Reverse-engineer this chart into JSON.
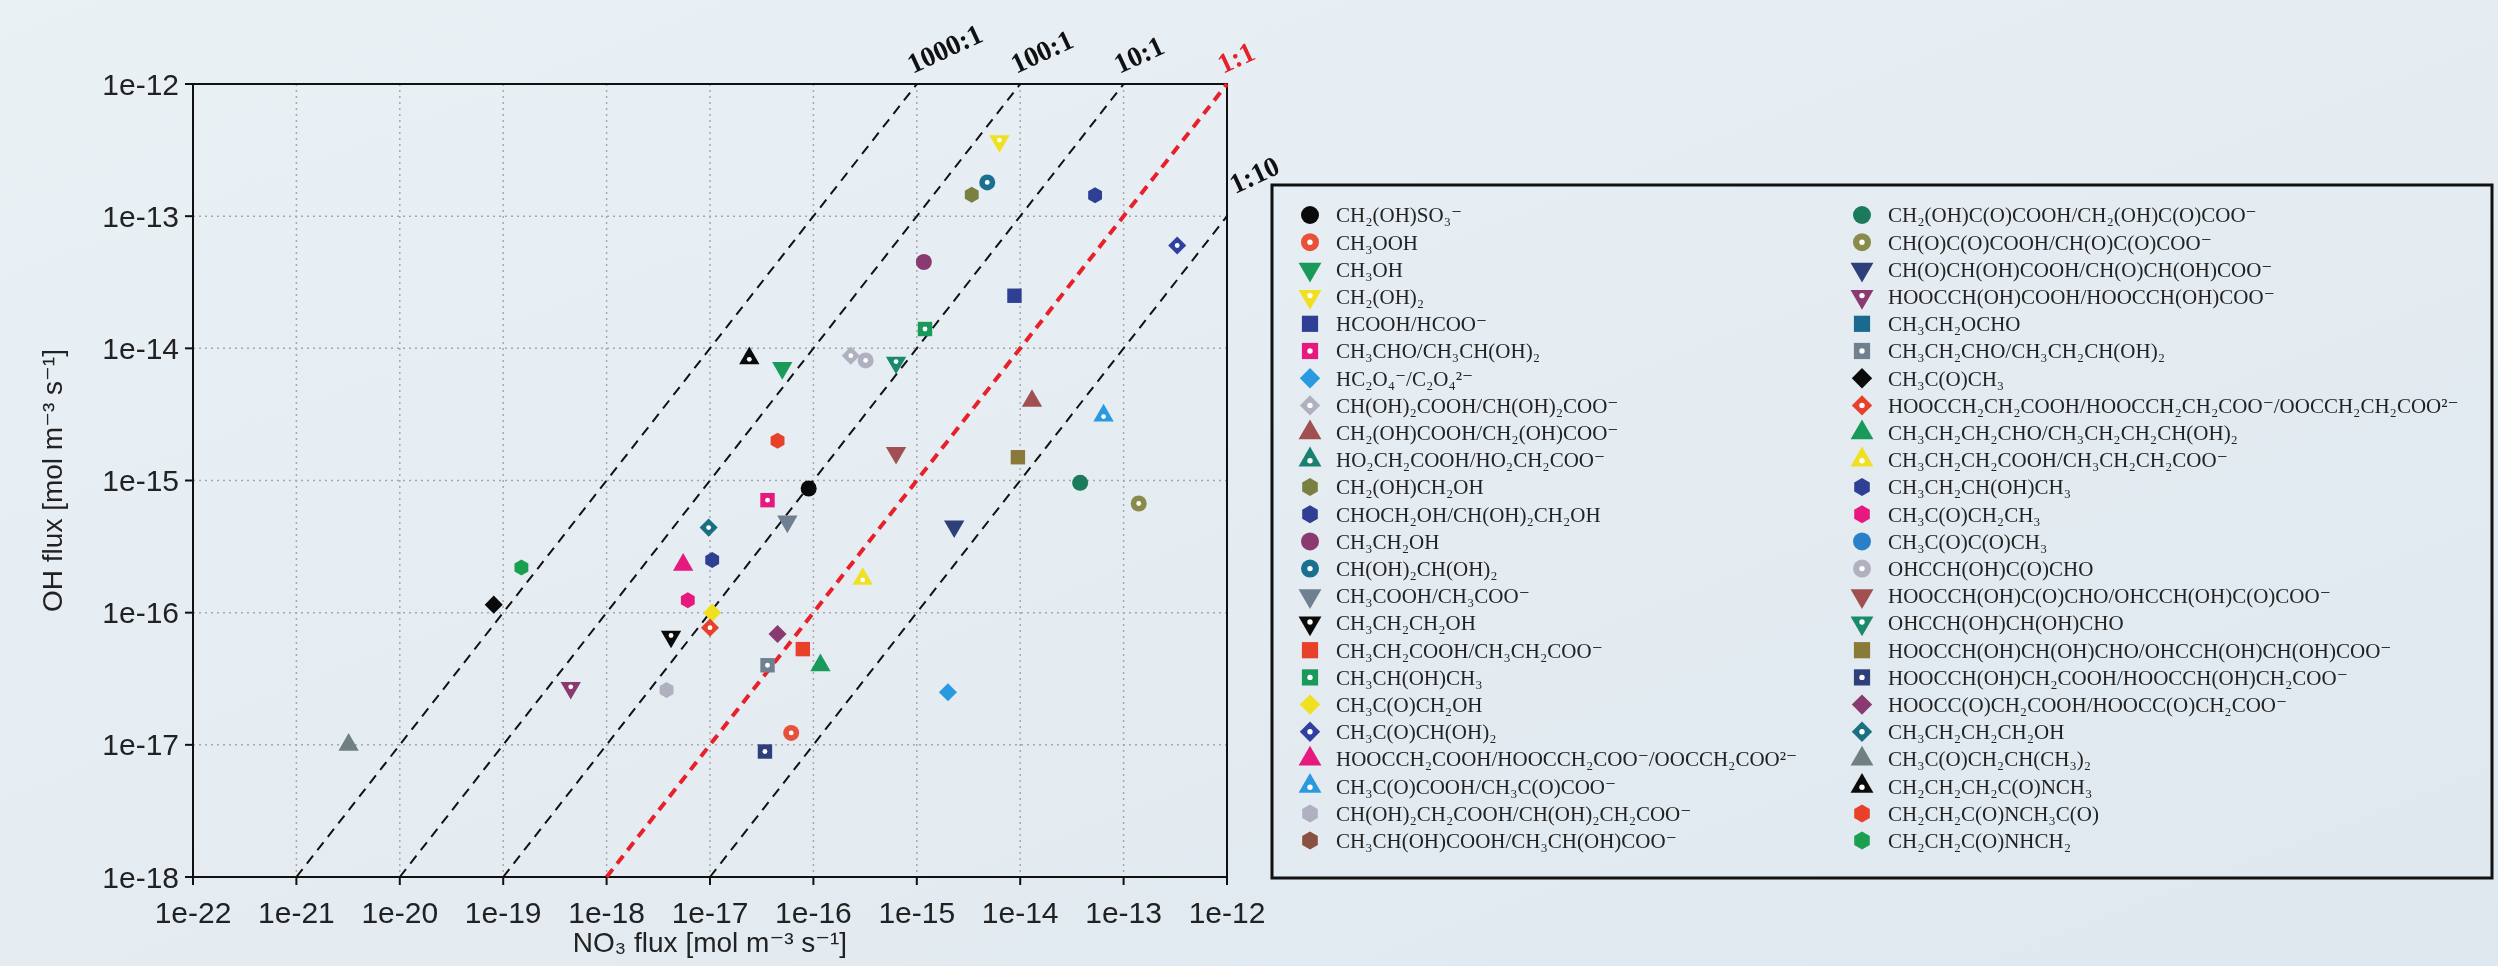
{
  "chart_data": {
    "type": "scatter",
    "xlabel": "NO₃ flux [mol m⁻³ s⁻¹]",
    "ylabel": "OH flux [mol m⁻³ s⁻¹]",
    "log": "xy",
    "grid": true,
    "legend": "right",
    "xlim": [
      1e-22,
      1e-12
    ],
    "ylim": [
      1e-18,
      1e-12
    ],
    "xticks": [
      {
        "value": 1e-22,
        "label": "1e-22"
      },
      {
        "value": 1e-21,
        "label": "1e-21"
      },
      {
        "value": 1e-20,
        "label": "1e-20"
      },
      {
        "value": 1e-19,
        "label": "1e-19"
      },
      {
        "value": 1e-18,
        "label": "1e-18"
      },
      {
        "value": 1e-17,
        "label": "1e-17"
      },
      {
        "value": 1e-16,
        "label": "1e-16"
      },
      {
        "value": 1e-15,
        "label": "1e-15"
      },
      {
        "value": 1e-14,
        "label": "1e-14"
      },
      {
        "value": 1e-13,
        "label": "1e-13"
      },
      {
        "value": 1e-12,
        "label": "1e-12"
      }
    ],
    "yticks": [
      {
        "value": 1e-18,
        "label": "1e-18"
      },
      {
        "value": 1e-17,
        "label": "1e-17"
      },
      {
        "value": 1e-16,
        "label": "1e-16"
      },
      {
        "value": 1e-15,
        "label": "1e-15"
      },
      {
        "value": 1e-14,
        "label": "1e-14"
      },
      {
        "value": 1e-13,
        "label": "1e-13"
      },
      {
        "value": 1e-12,
        "label": "1e-12"
      }
    ],
    "series": [
      {
        "type": "line",
        "name": "1000:1",
        "color": "#111111",
        "line_style": "dashed",
        "marker": "none",
        "x": [
          1e-21,
          1e-15
        ],
        "values": [
          1e-18,
          1e-12
        ]
      },
      {
        "type": "line",
        "name": "100:1",
        "color": "#111111",
        "line_style": "dashed",
        "marker": "none",
        "x": [
          1e-20,
          1e-14
        ],
        "values": [
          1e-18,
          1e-12
        ]
      },
      {
        "type": "line",
        "name": "10:1",
        "color": "#111111",
        "line_style": "dashed",
        "marker": "none",
        "x": [
          1e-19,
          1e-13
        ],
        "values": [
          1e-18,
          1e-12
        ]
      },
      {
        "type": "line",
        "name": "1:1",
        "color": "#e8202a",
        "line_style": "dashed",
        "marker": "none",
        "x": [
          1e-18,
          1e-12
        ],
        "values": [
          1e-18,
          1e-12
        ]
      },
      {
        "type": "line",
        "name": "1:10",
        "color": "#111111",
        "line_style": "dashed",
        "marker": "none",
        "x": [
          1e-17,
          1e-12
        ],
        "values": [
          1e-18,
          1e-13
        ]
      },
      {
        "type": "scatter",
        "name": "CH₂(OH)SO₃⁻",
        "color": "#0a0a0a",
        "marker": "circle",
        "x": [
          9e-17
        ],
        "values": [
          8.7e-16
        ]
      },
      {
        "type": "scatter",
        "name": "CH₃OOH",
        "color": "#e8503a",
        "marker": "circle-dot",
        "x": [
          6.1e-17
        ],
        "values": [
          1.23e-17
        ]
      },
      {
        "type": "scatter",
        "name": "CH₃OH",
        "color": "#1a9a5a",
        "marker": "triangle-down",
        "x": [
          5e-17
        ],
        "values": [
          7.1e-15
        ]
      },
      {
        "type": "scatter",
        "name": "CH₂(OH)₂",
        "color": "#f0e020",
        "marker": "triangle-down-dot",
        "x": [
          6.3e-15
        ],
        "values": [
          3.7e-13
        ]
      },
      {
        "type": "scatter",
        "name": "HCOOH/HCOO⁻",
        "color": "#2e3f94",
        "marker": "square",
        "x": [
          8.8e-15
        ],
        "values": [
          2.5e-14
        ]
      },
      {
        "type": "scatter",
        "name": "CH₃CHO/CH₃CH(OH)₂",
        "color": "#e6197f",
        "marker": "square-dot",
        "x": [
          3.6e-17
        ],
        "values": [
          7.1e-16
        ]
      },
      {
        "type": "scatter",
        "name": "HC₂O₄⁻/C₂O₄²⁻",
        "color": "#2a9ae0",
        "marker": "diamond",
        "x": [
          2e-15
        ],
        "values": [
          2.5e-17
        ]
      },
      {
        "type": "scatter",
        "name": "CH(OH)₂COOH/CH(OH)₂COO⁻",
        "color": "#b0b0c0",
        "marker": "diamond-dot",
        "x": [
          2.3e-16
        ],
        "values": [
          8.8e-15
        ]
      },
      {
        "type": "scatter",
        "name": "CH₂(OH)COOH/CH₂(OH)COO⁻",
        "color": "#a05050",
        "marker": "triangle",
        "x": [
          1.3e-14
        ],
        "values": [
          4e-15
        ]
      },
      {
        "type": "scatter",
        "name": "HO₂CH₂COOH/HO₂CH₂COO⁻",
        "color": "#1a8070",
        "marker": "triangle-dot",
        "x": [
          null
        ],
        "values": [
          null
        ]
      },
      {
        "name": "CH₂(OH)CH₂OH",
        "color": "#7a8040",
        "x": [
          3.4e-15
        ],
        "values": [
          1.45e-13
        ]
      },
      {
        "name": "CHOCH₂OH/CH(OH)₂CH₂OH",
        "color": "#2e3f94",
        "x": [
          5.3e-14
        ],
        "values": [
          1.44e-13
        ]
      },
      {
        "type": "scatter",
        "name": "CH₃CH₂OH",
        "color": "#8a3a70",
        "marker": "circle",
        "x": [
          1.17e-15
        ],
        "values": [
          4.5e-14
        ]
      },
      {
        "type": "scatter",
        "name": "CH(OH)₂CH(OH)₂",
        "color": "#1a7090",
        "marker": "circle-dot",
        "x": [
          4.8e-15
        ],
        "values": [
          1.8e-13
        ]
      },
      {
        "type": "scatter",
        "name": "CH₃COOH/CH₃COO⁻",
        "color": "#708090",
        "marker": "triangle-down",
        "x": [
          5.6e-17
        ],
        "values": [
          4.9e-16
        ]
      },
      {
        "type": "scatter",
        "name": "CH₃CH₂CH₂OH",
        "color": "#0a0a0a",
        "marker": "triangle-down-dot",
        "x": [
          4.2e-18
        ],
        "values": [
          6.6e-17
        ]
      },
      {
        "type": "scatter",
        "name": "CH₃CH₂COOH/CH₃CH₂COO⁻",
        "color": "#e8402a",
        "marker": "square",
        "x": [
          7.9e-17
        ],
        "values": [
          5.3e-17
        ]
      },
      {
        "type": "scatter",
        "name": "CH₃CH(OH)CH₃",
        "color": "#1a9a5a",
        "marker": "square-dot",
        "x": [
          1.2e-15
        ],
        "values": [
          1.4e-14
        ]
      },
      {
        "type": "scatter",
        "name": "CH₃C(O)CH₂OH",
        "color": "#f0e020",
        "marker": "diamond",
        "x": [
          1.05e-17
        ],
        "values": [
          1e-16
        ]
      },
      {
        "type": "scatter",
        "name": "CH₃C(O)CH(OH)₂",
        "color": "#3040a0",
        "marker": "diamond-dot",
        "x": [
          3.3e-13
        ],
        "values": [
          6e-14
        ]
      },
      {
        "type": "scatter",
        "name": "HOOCCH₂COOH/HOOCCH₂COO⁻/OOCCH₂COO²⁻",
        "color": "#e6197f",
        "marker": "triangle",
        "x": [
          5.5e-18
        ],
        "values": [
          2.3e-16
        ]
      },
      {
        "type": "scatter",
        "name": "CH₃C(O)COOH/CH₃C(O)COO⁻",
        "color": "#2a9ae0",
        "marker": "triangle-dot",
        "x": [
          6.4e-14
        ],
        "values": [
          3.1e-15
        ]
      },
      {
        "name": "CH(OH)₂CH₂COOH/CH(OH)₂CH₂COO⁻",
        "color": "#b0b0c0",
        "x": [
          3.8e-18
        ],
        "values": [
          2.6e-17
        ]
      },
      {
        "name": "CH₃CH(OH)COOH/CH₃CH(OH)COO⁻",
        "color": "#8a5040",
        "x": [
          null
        ],
        "values": [
          null
        ]
      },
      {
        "type": "scatter",
        "name": "CH₂(OH)C(O)COOH/CH₂(OH)C(O)COO⁻",
        "color": "#1a7a5a",
        "marker": "circle",
        "x": [
          3.8e-14
        ],
        "values": [
          9.6e-16
        ]
      },
      {
        "type": "scatter",
        "name": "CH(O)C(O)COOH/CH(O)C(O)COO⁻",
        "color": "#8a8a4a",
        "marker": "circle-dot",
        "x": [
          1.4e-13
        ],
        "values": [
          6.7e-16
        ]
      },
      {
        "type": "scatter",
        "name": "CH(O)CH(OH)COOH/CH(O)CH(OH)COO⁻",
        "color": "#2e3f7a",
        "marker": "triangle-down",
        "x": [
          2.3e-15
        ],
        "values": [
          4.5e-16
        ]
      },
      {
        "type": "scatter",
        "name": "HOOCCH(OH)COOH/HOOCCH(OH)COO⁻",
        "color": "#8a3a70",
        "marker": "triangle-down-dot",
        "x": [
          4.5e-19
        ],
        "values": [
          2.7e-17
        ]
      },
      {
        "type": "scatter",
        "name": "CH₃CH₂OCHO",
        "color": "#1a6a90",
        "marker": "square",
        "x": [
          null
        ],
        "values": [
          null
        ]
      },
      {
        "type": "scatter",
        "name": "CH₃CH₂CHO/CH₃CH₂CH(OH)₂",
        "color": "#708090",
        "marker": "square-dot",
        "x": [
          3.6e-17
        ],
        "values": [
          4e-17
        ]
      },
      {
        "type": "scatter",
        "name": "CH₃C(O)CH₃",
        "color": "#0a0a0a",
        "marker": "diamond",
        "x": [
          8.1e-20
        ],
        "values": [
          1.15e-16
        ]
      },
      {
        "type": "scatter",
        "name": "HOOCCH₂CH₂COOH/HOOCCH₂CH₂COO⁻/OOCCH₂CH₂COO²⁻",
        "color": "#e8402a",
        "marker": "diamond-dot",
        "x": [
          1e-17
        ],
        "values": [
          7.7e-17
        ]
      },
      {
        "type": "scatter",
        "name": "CH₃CH₂CH₂CHO/CH₃CH₂CH₂CH(OH)₂",
        "color": "#1a9a5a",
        "marker": "triangle",
        "x": [
          1.17e-16
        ],
        "values": [
          4e-17
        ]
      },
      {
        "type": "scatter",
        "name": "CH₃CH₂CH₂COOH/CH₃CH₂CH₂COO⁻",
        "color": "#f0e020",
        "marker": "triangle-dot",
        "x": [
          3e-16
        ],
        "values": [
          1.8e-16
        ]
      },
      {
        "name": "CH₃CH₂CH(OH)CH₃",
        "color": "#2e3f94",
        "x": [
          1.05e-17
        ],
        "values": [
          2.5e-16
        ]
      },
      {
        "name": "CH₃C(O)CH₂CH₃",
        "color": "#e6197f",
        "x": [
          6.1e-18
        ],
        "values": [
          1.24e-16
        ]
      },
      {
        "type": "scatter",
        "name": "CH₃C(O)C(O)CH₃",
        "color": "#2a80c8",
        "marker": "circle",
        "x": [
          null
        ],
        "values": [
          null
        ]
      },
      {
        "type": "scatter",
        "name": "OHCCH(OH)C(O)CHO",
        "color": "#b0b0c0",
        "marker": "circle-dot",
        "x": [
          3.2e-16
        ],
        "values": [
          8.1e-15
        ]
      },
      {
        "type": "scatter",
        "name": "HOOCCH(OH)C(O)CHO/OHCCH(OH)C(O)COO⁻",
        "color": "#a05050",
        "marker": "triangle-down",
        "x": [
          6.3e-16
        ],
        "values": [
          1.62e-15
        ]
      },
      {
        "type": "scatter",
        "name": "OHCCH(OH)CH(OH)CHO",
        "color": "#1a8a6a",
        "marker": "triangle-down-dot",
        "x": [
          6.3e-16
        ],
        "values": [
          7.8e-15
        ]
      },
      {
        "type": "scatter",
        "name": "HOOCCH(OH)CH(OH)CHO/OHCCH(OH)CH(OH)COO⁻",
        "color": "#8a7a3a",
        "marker": "square",
        "x": [
          9.5e-15
        ],
        "values": [
          1.5e-15
        ]
      },
      {
        "type": "scatter",
        "name": "HOOCCH(OH)CH₂COOH/HOOCCH(OH)CH₂COO⁻",
        "color": "#2e3f7a",
        "marker": "square-dot",
        "x": [
          3.4e-17
        ],
        "values": [
          8.9e-18
        ]
      },
      {
        "type": "scatter",
        "name": "HOOCC(O)CH₂COOH/HOOCC(O)CH₂COO⁻",
        "color": "#8a3a70",
        "marker": "diamond",
        "x": [
          4.5e-17
        ],
        "values": [
          6.9e-17
        ]
      },
      {
        "type": "scatter",
        "name": "CH₃CH₂CH₂CH₂OH",
        "color": "#1a7080",
        "marker": "diamond-dot",
        "x": [
          9.7e-18
        ],
        "values": [
          4.4e-16
        ]
      },
      {
        "type": "scatter",
        "name": "CH₃C(O)CH₂CH(CH₃)₂",
        "color": "#708080",
        "marker": "triangle",
        "x": [
          3.2e-21
        ],
        "values": [
          1e-17
        ]
      },
      {
        "type": "scatter",
        "name": "CH₂CH₂CH₂C(O)NCH₃",
        "color": "#0a0a0a",
        "marker": "triangle-dot",
        "x": [
          2.4e-17
        ],
        "values": [
          8.4e-15
        ]
      },
      {
        "name": "CH₂CH₂C(O)NCH₃C(O)",
        "color": "#e8402a",
        "x": [
          4.5e-17
        ],
        "values": [
          2e-15
        ]
      },
      {
        "name": "CH₂CH₂C(O)NHCH₂",
        "color": "#1aa050",
        "x": [
          1.5e-19
        ],
        "values": [
          2.2e-16
        ]
      }
    ]
  }
}
